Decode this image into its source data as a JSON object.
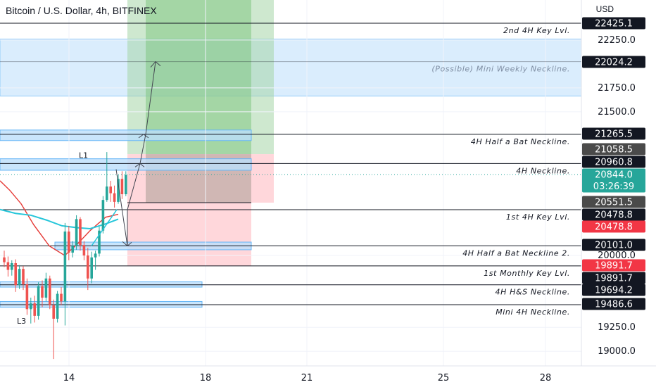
{
  "header": {
    "title": "Bitcoin / U.S. Dollar, 4h, BITFINEX",
    "currency": "USD"
  },
  "colors": {
    "up": "#26a69a",
    "down": "#ef5350",
    "blue_zone": "#bbdefb",
    "green_zone": "#a5d6a7",
    "red_zone": "#ffcdd2",
    "ema_fast": "#e53935",
    "ema_slow": "#26c6da",
    "price_tag": "#26a69a",
    "label_dark": "#131722",
    "label_red": "#f23645",
    "label_grey": "#4a4a4a"
  },
  "chart_data": {
    "type": "candlestick",
    "symbol": "Bitcoin / U.S. Dollar",
    "interval": "4h",
    "exchange": "BITFINEX",
    "y_axis": {
      "ticks": [
        22250.0,
        21750.0,
        21500.0,
        20000.0,
        19250.0,
        19000.0
      ],
      "range": [
        18870,
        22650
      ]
    },
    "x_axis": {
      "ticks": [
        "14",
        "18",
        "21",
        "25",
        "28"
      ]
    },
    "price_labels": [
      {
        "value": "22425.1",
        "style": "dark"
      },
      {
        "value": "22024.2",
        "style": "dark"
      },
      {
        "value": "21265.5",
        "style": "dark"
      },
      {
        "value": "21058.5",
        "style": "grey"
      },
      {
        "value": "20960.8",
        "style": "dark"
      },
      {
        "value": "20844.0",
        "style": "current",
        "sub": "03:26:39"
      },
      {
        "value": "20551.5",
        "style": "grey"
      },
      {
        "value": "20478.8",
        "style": "dark"
      },
      {
        "value": "20478.8",
        "style": "red"
      },
      {
        "value": "20101.0",
        "style": "dark"
      },
      {
        "value": "19891.7",
        "style": "red"
      },
      {
        "value": "19891.7",
        "style": "dark"
      },
      {
        "value": "19694.2",
        "style": "dark"
      },
      {
        "value": "19486.6",
        "style": "dark"
      }
    ],
    "levels": [
      {
        "price": 22425.1,
        "label": "2nd 4H Key Lvl."
      },
      {
        "price": 22024.2,
        "label": "(Possible) Mini Weekly Neckline.",
        "style": "faint"
      },
      {
        "price": 21265.5,
        "label": "4H Half a Bat Neckline."
      },
      {
        "price": 20960.8,
        "label": "4H Neckline."
      },
      {
        "price": 20478.8,
        "label": "1st 4H Key Lvl."
      },
      {
        "price": 20101.0,
        "label": "4H Half a Bat Neckline 2."
      },
      {
        "price": 19891.7,
        "label": "1st Monthly Key Lvl."
      },
      {
        "price": 19694.2,
        "label": "4H H&S Neckline."
      },
      {
        "price": 19486.6,
        "label": "Mini 4H Neckline."
      }
    ],
    "current_price": 20844.0,
    "annotations": [
      "L1",
      "L3"
    ],
    "candles": [
      {
        "o": 19980,
        "h": 20050,
        "l": 19880,
        "c": 19930
      },
      {
        "o": 19930,
        "h": 19990,
        "l": 19780,
        "c": 19850
      },
      {
        "o": 19850,
        "h": 19950,
        "l": 19790,
        "c": 19920
      },
      {
        "o": 19920,
        "h": 19960,
        "l": 19620,
        "c": 19690
      },
      {
        "o": 19690,
        "h": 19900,
        "l": 19650,
        "c": 19860
      },
      {
        "o": 19860,
        "h": 19890,
        "l": 19640,
        "c": 19700
      },
      {
        "o": 19700,
        "h": 19760,
        "l": 19380,
        "c": 19440
      },
      {
        "o": 19440,
        "h": 19560,
        "l": 19290,
        "c": 19500
      },
      {
        "o": 19500,
        "h": 19580,
        "l": 19300,
        "c": 19370
      },
      {
        "o": 19370,
        "h": 19720,
        "l": 19330,
        "c": 19680
      },
      {
        "o": 19680,
        "h": 19740,
        "l": 19460,
        "c": 19560
      },
      {
        "o": 19560,
        "h": 19820,
        "l": 19520,
        "c": 19760
      },
      {
        "o": 19760,
        "h": 19790,
        "l": 19440,
        "c": 19480
      },
      {
        "o": 19480,
        "h": 19540,
        "l": 18920,
        "c": 19340
      },
      {
        "o": 19340,
        "h": 19630,
        "l": 19300,
        "c": 19600
      },
      {
        "o": 19600,
        "h": 19670,
        "l": 19480,
        "c": 19520
      },
      {
        "o": 19520,
        "h": 20340,
        "l": 19270,
        "c": 20250
      },
      {
        "o": 20250,
        "h": 20310,
        "l": 19950,
        "c": 20030
      },
      {
        "o": 20030,
        "h": 20150,
        "l": 19980,
        "c": 20100
      },
      {
        "o": 20100,
        "h": 20420,
        "l": 20060,
        "c": 20380
      },
      {
        "o": 20380,
        "h": 20400,
        "l": 20050,
        "c": 20110
      },
      {
        "o": 20110,
        "h": 20150,
        "l": 19950,
        "c": 20000
      },
      {
        "o": 20000,
        "h": 20080,
        "l": 19640,
        "c": 19760
      },
      {
        "o": 19760,
        "h": 20040,
        "l": 19710,
        "c": 19980
      },
      {
        "o": 19980,
        "h": 20050,
        "l": 19850,
        "c": 20020
      },
      {
        "o": 20020,
        "h": 20300,
        "l": 19990,
        "c": 20260
      },
      {
        "o": 20260,
        "h": 20620,
        "l": 20230,
        "c": 20580
      },
      {
        "o": 20580,
        "h": 21080,
        "l": 20560,
        "c": 20720
      },
      {
        "o": 20720,
        "h": 20780,
        "l": 20560,
        "c": 20650
      },
      {
        "o": 20650,
        "h": 20730,
        "l": 20500,
        "c": 20560
      },
      {
        "o": 20560,
        "h": 20840,
        "l": 20540,
        "c": 20800
      },
      {
        "o": 20800,
        "h": 20880,
        "l": 20590,
        "c": 20640
      },
      {
        "o": 20640,
        "h": 20880,
        "l": 20620,
        "c": 20840
      }
    ]
  }
}
